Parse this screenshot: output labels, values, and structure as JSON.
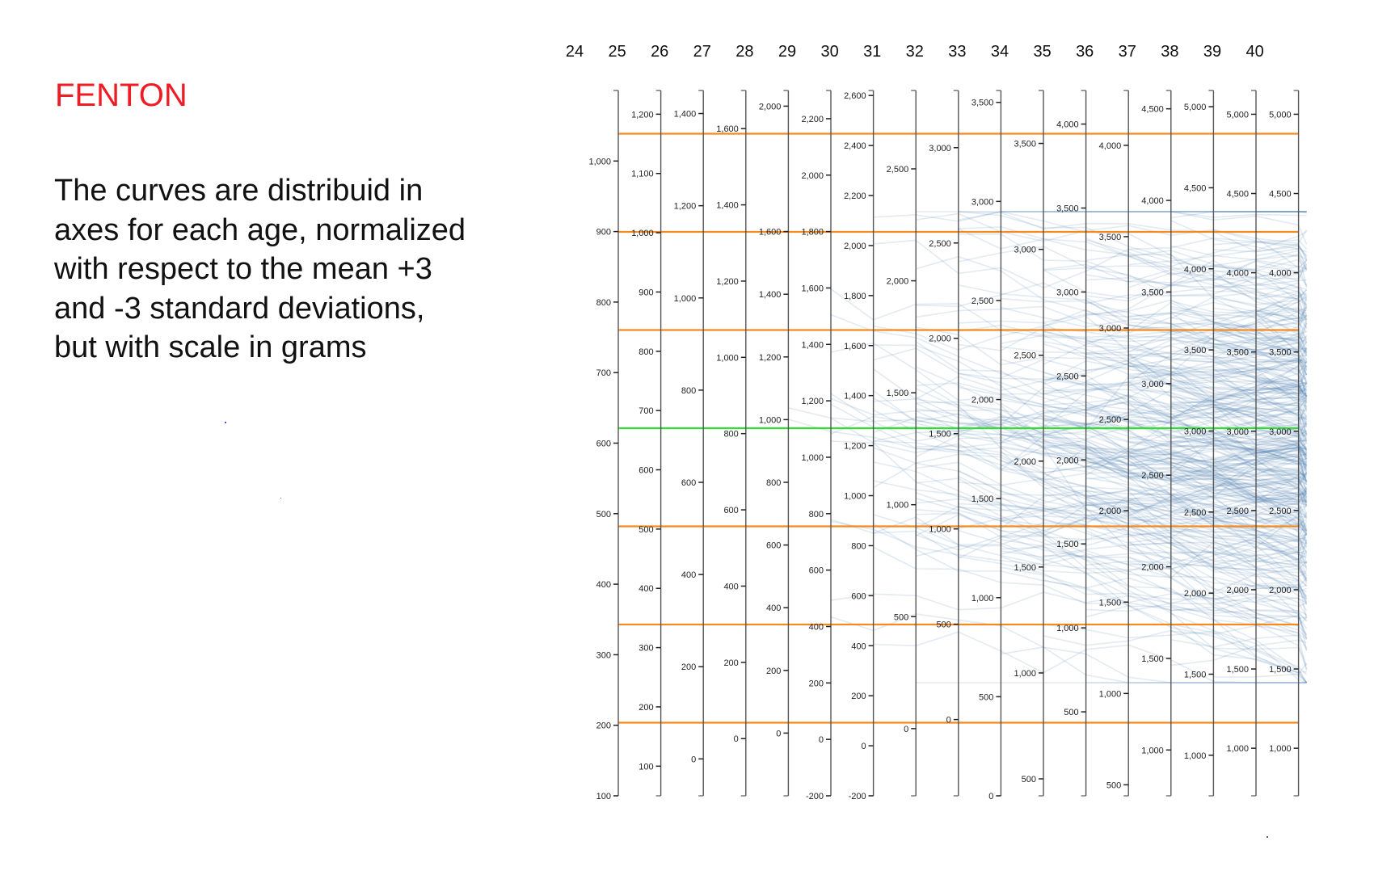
{
  "title": "FENTON",
  "description_lines": [
    "The curves are distribuid in",
    "axes for each age, normalized",
    "with respect to the mean +3",
    "and -3 standard deviations,",
    "but with scale in grams"
  ],
  "colors": {
    "title": "#ee1c24",
    "curve": "#4a7db0",
    "sd_line": "#f58a1f",
    "mean_line": "#33dd33",
    "axis": "#555555"
  },
  "chart_data": {
    "type": "parallel-coordinates",
    "title": "",
    "xlabel": "",
    "ylabel": "",
    "unit": "grams",
    "ages": [
      24,
      25,
      26,
      27,
      28,
      29,
      30,
      31,
      32,
      33,
      34,
      35,
      36,
      37,
      38,
      39,
      40
    ],
    "reference_lines_sd": [
      3,
      2,
      1,
      0,
      -1,
      -2,
      -3
    ],
    "axes": [
      {
        "age": "24",
        "range": [
          100,
          1100
        ],
        "ticks": [
          100,
          200,
          300,
          400,
          500,
          600,
          700,
          800,
          900,
          1000
        ]
      },
      {
        "age": "25",
        "range": [
          50,
          1240
        ],
        "ticks": [
          100,
          200,
          300,
          400,
          500,
          600,
          700,
          800,
          900,
          1000,
          1100,
          1200
        ]
      },
      {
        "age": "26",
        "range": [
          -80,
          1450
        ],
        "ticks": [
          0,
          200,
          400,
          600,
          800,
          1000,
          1200,
          1400
        ]
      },
      {
        "age": "27",
        "range": [
          -150,
          1700
        ],
        "ticks": [
          0,
          200,
          400,
          600,
          800,
          1000,
          1200,
          1400,
          1600
        ]
      },
      {
        "age": "28",
        "range": [
          -200,
          2050
        ],
        "ticks": [
          0,
          200,
          400,
          600,
          800,
          1000,
          1200,
          1400,
          1600,
          2000
        ]
      },
      {
        "age": "29",
        "range": [
          -200,
          2300
        ],
        "ticks": [
          -200,
          0,
          200,
          400,
          600,
          800,
          1000,
          1200,
          1400,
          1600,
          1800,
          2000,
          2200
        ]
      },
      {
        "age": "30",
        "range": [
          -200,
          2620
        ],
        "ticks": [
          -200,
          0,
          200,
          400,
          600,
          800,
          1000,
          1200,
          1400,
          1600,
          1800,
          2000,
          2200,
          2400,
          2600
        ]
      },
      {
        "age": "31",
        "range": [
          -300,
          2850
        ],
        "ticks": [
          0,
          500,
          1000,
          1500,
          2000,
          2500
        ]
      },
      {
        "age": "32",
        "range": [
          -400,
          3300
        ],
        "ticks": [
          0,
          500,
          1000,
          1500,
          2000,
          2500,
          3000
        ]
      },
      {
        "age": "33",
        "range": [
          0,
          3560
        ],
        "ticks": [
          0,
          500,
          1000,
          1500,
          2000,
          2500,
          3000,
          3500
        ]
      },
      {
        "age": "34",
        "range": [
          420,
          3750
        ],
        "ticks": [
          500,
          1000,
          1500,
          2000,
          2500,
          3000,
          3500
        ]
      },
      {
        "age": "35",
        "range": [
          0,
          4200
        ],
        "ticks": [
          500,
          1000,
          1500,
          2000,
          2500,
          3000,
          3500,
          4000
        ]
      },
      {
        "age": "36",
        "range": [
          440,
          4300
        ],
        "ticks": [
          500,
          1000,
          1500,
          2000,
          2500,
          3000,
          3500,
          4000
        ]
      },
      {
        "age": "37",
        "range": [
          750,
          4600
        ],
        "ticks": [
          1000,
          1500,
          2000,
          2500,
          3000,
          3500,
          4000,
          4500
        ]
      },
      {
        "age": "38",
        "range": [
          750,
          5100
        ],
        "ticks": [
          1000,
          1500,
          2000,
          2500,
          3000,
          3500,
          4000,
          4500,
          5000
        ]
      },
      {
        "age": "39",
        "range": [
          700,
          5150
        ],
        "ticks": [
          1000,
          1500,
          2000,
          2500,
          3000,
          3500,
          4000,
          4500,
          5000
        ]
      },
      {
        "age": "40",
        "range": [
          700,
          5150
        ],
        "ticks": [
          1000,
          1500,
          2000,
          2500,
          3000,
          3500,
          4000,
          4500,
          5000
        ]
      }
    ]
  }
}
